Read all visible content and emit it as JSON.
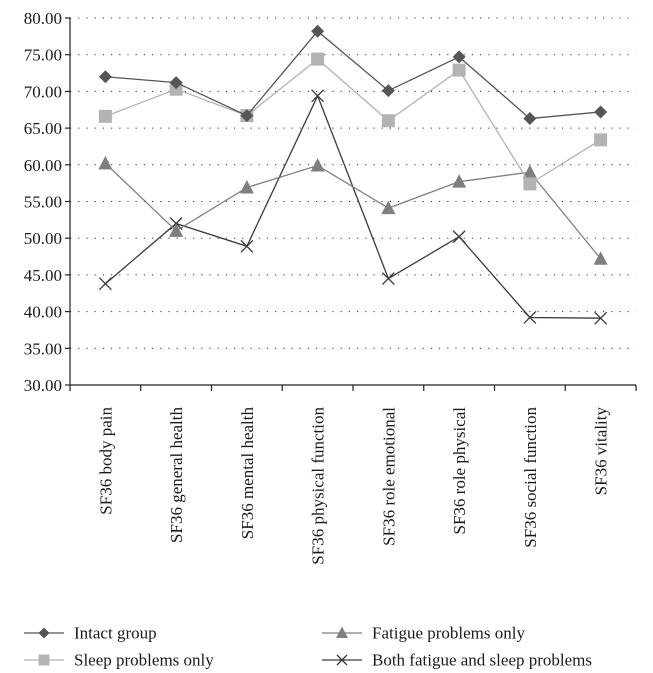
{
  "chart_data": {
    "type": "line",
    "title": "",
    "xlabel": "",
    "ylabel": "",
    "ylim": [
      30,
      80
    ],
    "y_ticks": [
      30,
      35,
      40,
      45,
      50,
      55,
      60,
      65,
      70,
      75,
      80
    ],
    "y_tick_labels": [
      "30.00",
      "35.00",
      "40.00",
      "45.00",
      "50.00",
      "55.00",
      "60.00",
      "65.00",
      "70.00",
      "75.00",
      "80.00"
    ],
    "grid": "horizontal dotted",
    "legend_position": "bottom",
    "categories": [
      "SF36 body pain",
      "SF36 general health",
      "SF36 mental health",
      "SF36 physical function",
      "SF36 role emotional",
      "SF36 role physical",
      "SF36 social function",
      "SF36 vitality"
    ],
    "series": [
      {
        "name": "Intact group",
        "marker": "diamond",
        "color": "#555555",
        "values": [
          72.0,
          71.2,
          66.7,
          78.2,
          70.1,
          74.7,
          66.3,
          67.2
        ]
      },
      {
        "name": "Sleep problems only",
        "marker": "square",
        "color": "#b3b3b3",
        "values": [
          66.6,
          70.3,
          66.7,
          74.4,
          66.0,
          72.9,
          57.4,
          63.4
        ]
      },
      {
        "name": "Fatigue problems only",
        "marker": "triangle",
        "color": "#7f7f7f",
        "values": [
          60.2,
          51.0,
          56.9,
          59.9,
          54.1,
          57.7,
          59.0,
          47.2
        ]
      },
      {
        "name": "Both fatigue and sleep problems",
        "marker": "x",
        "color": "#3a3a3a",
        "values": [
          43.8,
          52.0,
          48.9,
          69.4,
          44.5,
          50.2,
          39.2,
          39.1
        ]
      }
    ]
  }
}
